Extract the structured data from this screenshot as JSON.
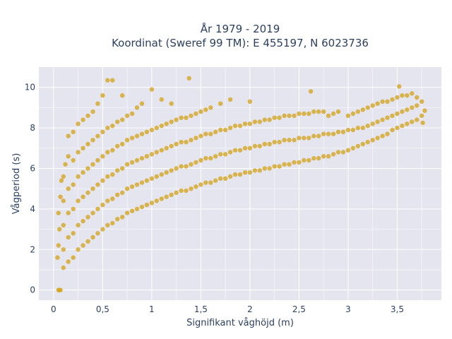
{
  "chart_data": {
    "type": "scatter",
    "title_line1": "År 1979 - 2019",
    "title_line2": "Koordinat (Sweref 99 TM): E 455197, N 6023736",
    "xlabel": "Signifikant våghöjd (m)",
    "ylabel": "Vågperiod (s)",
    "xlim": [
      -0.15,
      3.95
    ],
    "ylim": [
      -0.5,
      11.0
    ],
    "x_ticks": [
      {
        "value": 0,
        "label": "0"
      },
      {
        "value": 0.5,
        "label": "0,5"
      },
      {
        "value": 1,
        "label": "1"
      },
      {
        "value": 1.5,
        "label": "1,5"
      },
      {
        "value": 2,
        "label": "2"
      },
      {
        "value": 2.5,
        "label": "2,5"
      },
      {
        "value": 3,
        "label": "3"
      },
      {
        "value": 3.5,
        "label": "3,5"
      }
    ],
    "y_ticks": [
      {
        "value": 0,
        "label": "0"
      },
      {
        "value": 2,
        "label": "2"
      },
      {
        "value": 4,
        "label": "4"
      },
      {
        "value": 6,
        "label": "6"
      },
      {
        "value": 8,
        "label": "8"
      },
      {
        "value": 10,
        "label": "10"
      }
    ],
    "grid": true,
    "legend": "none",
    "marker_color": "#d4a520",
    "background_color": "#e5e5ef",
    "series": [
      {
        "points": [
          [
            0.05,
            0.0
          ],
          [
            0.06,
            0.0
          ],
          [
            0.07,
            0.0
          ],
          [
            0.04,
            1.6
          ],
          [
            0.05,
            2.2
          ],
          [
            0.06,
            3.0
          ],
          [
            0.05,
            3.8
          ],
          [
            0.07,
            4.6
          ],
          [
            0.08,
            5.4
          ],
          [
            0.1,
            1.1
          ],
          [
            0.1,
            2.0
          ],
          [
            0.1,
            3.2
          ],
          [
            0.1,
            4.4
          ],
          [
            0.1,
            5.6
          ],
          [
            0.12,
            6.2
          ],
          [
            0.15,
            1.4
          ],
          [
            0.15,
            2.6
          ],
          [
            0.15,
            3.8
          ],
          [
            0.15,
            5.0
          ],
          [
            0.15,
            6.6
          ],
          [
            0.15,
            7.6
          ],
          [
            0.2,
            1.6
          ],
          [
            0.2,
            2.8
          ],
          [
            0.2,
            4.0
          ],
          [
            0.2,
            5.2
          ],
          [
            0.2,
            6.4
          ],
          [
            0.2,
            7.8
          ],
          [
            0.25,
            2.0
          ],
          [
            0.25,
            3.2
          ],
          [
            0.25,
            4.4
          ],
          [
            0.25,
            5.6
          ],
          [
            0.25,
            6.8
          ],
          [
            0.25,
            8.2
          ],
          [
            0.3,
            2.2
          ],
          [
            0.3,
            3.4
          ],
          [
            0.3,
            4.6
          ],
          [
            0.3,
            5.8
          ],
          [
            0.3,
            7.0
          ],
          [
            0.3,
            8.4
          ],
          [
            0.35,
            2.4
          ],
          [
            0.35,
            3.6
          ],
          [
            0.35,
            4.8
          ],
          [
            0.35,
            6.0
          ],
          [
            0.35,
            7.2
          ],
          [
            0.35,
            8.6
          ],
          [
            0.4,
            2.6
          ],
          [
            0.4,
            3.8
          ],
          [
            0.4,
            5.0
          ],
          [
            0.4,
            6.2
          ],
          [
            0.4,
            7.4
          ],
          [
            0.4,
            8.8
          ],
          [
            0.45,
            2.8
          ],
          [
            0.45,
            4.0
          ],
          [
            0.45,
            5.2
          ],
          [
            0.45,
            6.4
          ],
          [
            0.45,
            7.6
          ],
          [
            0.45,
            9.2
          ],
          [
            0.5,
            3.0
          ],
          [
            0.5,
            4.2
          ],
          [
            0.5,
            5.4
          ],
          [
            0.5,
            6.6
          ],
          [
            0.5,
            7.8
          ],
          [
            0.5,
            9.6
          ],
          [
            0.55,
            3.2
          ],
          [
            0.55,
            4.4
          ],
          [
            0.55,
            5.6
          ],
          [
            0.55,
            6.8
          ],
          [
            0.55,
            8.0
          ],
          [
            0.55,
            10.35
          ],
          [
            0.6,
            3.3
          ],
          [
            0.6,
            4.5
          ],
          [
            0.6,
            5.7
          ],
          [
            0.6,
            6.9
          ],
          [
            0.6,
            8.1
          ],
          [
            0.6,
            10.35
          ],
          [
            0.65,
            3.5
          ],
          [
            0.65,
            4.7
          ],
          [
            0.65,
            5.9
          ],
          [
            0.65,
            7.1
          ],
          [
            0.65,
            8.3
          ],
          [
            0.7,
            3.6
          ],
          [
            0.7,
            4.8
          ],
          [
            0.7,
            6.0
          ],
          [
            0.7,
            7.2
          ],
          [
            0.7,
            8.4
          ],
          [
            0.7,
            9.6
          ],
          [
            0.75,
            3.8
          ],
          [
            0.75,
            5.0
          ],
          [
            0.75,
            6.2
          ],
          [
            0.75,
            7.4
          ],
          [
            0.75,
            8.6
          ],
          [
            0.8,
            3.9
          ],
          [
            0.8,
            5.1
          ],
          [
            0.8,
            6.3
          ],
          [
            0.8,
            7.5
          ],
          [
            0.8,
            8.7
          ],
          [
            0.85,
            4.0
          ],
          [
            0.85,
            5.2
          ],
          [
            0.85,
            6.4
          ],
          [
            0.85,
            7.6
          ],
          [
            0.85,
            9.0
          ],
          [
            0.9,
            4.1
          ],
          [
            0.9,
            5.3
          ],
          [
            0.9,
            6.5
          ],
          [
            0.9,
            7.7
          ],
          [
            0.9,
            9.2
          ],
          [
            0.95,
            4.2
          ],
          [
            0.95,
            5.4
          ],
          [
            0.95,
            6.6
          ],
          [
            0.95,
            7.8
          ],
          [
            1.0,
            4.3
          ],
          [
            1.0,
            5.5
          ],
          [
            1.0,
            6.7
          ],
          [
            1.0,
            7.9
          ],
          [
            1.0,
            9.9
          ],
          [
            1.05,
            4.4
          ],
          [
            1.05,
            5.6
          ],
          [
            1.05,
            6.8
          ],
          [
            1.05,
            8.0
          ],
          [
            1.1,
            4.5
          ],
          [
            1.1,
            5.7
          ],
          [
            1.1,
            6.9
          ],
          [
            1.1,
            8.1
          ],
          [
            1.1,
            9.4
          ],
          [
            1.15,
            4.6
          ],
          [
            1.15,
            5.8
          ],
          [
            1.15,
            7.0
          ],
          [
            1.15,
            8.2
          ],
          [
            1.2,
            4.7
          ],
          [
            1.2,
            5.9
          ],
          [
            1.2,
            7.1
          ],
          [
            1.2,
            8.3
          ],
          [
            1.2,
            9.2
          ],
          [
            1.25,
            4.8
          ],
          [
            1.25,
            6.0
          ],
          [
            1.25,
            7.2
          ],
          [
            1.25,
            8.4
          ],
          [
            1.3,
            4.9
          ],
          [
            1.3,
            6.1
          ],
          [
            1.3,
            7.3
          ],
          [
            1.3,
            8.5
          ],
          [
            1.35,
            4.9
          ],
          [
            1.35,
            6.1
          ],
          [
            1.35,
            7.3
          ],
          [
            1.35,
            8.5
          ],
          [
            1.38,
            10.45
          ],
          [
            1.4,
            5.0
          ],
          [
            1.4,
            6.2
          ],
          [
            1.4,
            7.4
          ],
          [
            1.4,
            8.6
          ],
          [
            1.45,
            5.1
          ],
          [
            1.45,
            6.3
          ],
          [
            1.45,
            7.5
          ],
          [
            1.45,
            8.7
          ],
          [
            1.5,
            5.2
          ],
          [
            1.5,
            6.4
          ],
          [
            1.5,
            7.6
          ],
          [
            1.5,
            8.8
          ],
          [
            1.55,
            5.3
          ],
          [
            1.55,
            6.5
          ],
          [
            1.55,
            7.7
          ],
          [
            1.55,
            8.9
          ],
          [
            1.6,
            5.3
          ],
          [
            1.6,
            6.5
          ],
          [
            1.6,
            7.7
          ],
          [
            1.6,
            9.0
          ],
          [
            1.65,
            5.4
          ],
          [
            1.65,
            6.6
          ],
          [
            1.65,
            7.8
          ],
          [
            1.7,
            5.5
          ],
          [
            1.7,
            6.7
          ],
          [
            1.7,
            7.9
          ],
          [
            1.7,
            9.2
          ],
          [
            1.75,
            5.5
          ],
          [
            1.75,
            6.7
          ],
          [
            1.75,
            7.9
          ],
          [
            1.8,
            5.6
          ],
          [
            1.8,
            6.8
          ],
          [
            1.8,
            8.0
          ],
          [
            1.8,
            9.4
          ],
          [
            1.85,
            5.7
          ],
          [
            1.85,
            6.9
          ],
          [
            1.85,
            8.1
          ],
          [
            1.9,
            5.7
          ],
          [
            1.9,
            6.9
          ],
          [
            1.9,
            8.1
          ],
          [
            1.95,
            5.8
          ],
          [
            1.95,
            7.0
          ],
          [
            1.95,
            8.2
          ],
          [
            2.0,
            5.8
          ],
          [
            2.0,
            7.0
          ],
          [
            2.0,
            8.2
          ],
          [
            2.0,
            9.3
          ],
          [
            2.05,
            5.9
          ],
          [
            2.05,
            7.1
          ],
          [
            2.05,
            8.3
          ],
          [
            2.1,
            5.9
          ],
          [
            2.1,
            7.1
          ],
          [
            2.1,
            8.3
          ],
          [
            2.15,
            6.0
          ],
          [
            2.15,
            7.2
          ],
          [
            2.15,
            8.4
          ],
          [
            2.2,
            6.0
          ],
          [
            2.2,
            7.2
          ],
          [
            2.2,
            8.4
          ],
          [
            2.25,
            6.1
          ],
          [
            2.25,
            7.3
          ],
          [
            2.25,
            8.5
          ],
          [
            2.3,
            6.1
          ],
          [
            2.3,
            7.3
          ],
          [
            2.3,
            8.5
          ],
          [
            2.35,
            6.2
          ],
          [
            2.35,
            7.4
          ],
          [
            2.35,
            8.6
          ],
          [
            2.4,
            6.2
          ],
          [
            2.4,
            7.4
          ],
          [
            2.4,
            8.6
          ],
          [
            2.45,
            6.3
          ],
          [
            2.45,
            7.4
          ],
          [
            2.45,
            8.6
          ],
          [
            2.5,
            6.3
          ],
          [
            2.5,
            7.5
          ],
          [
            2.5,
            8.7
          ],
          [
            2.55,
            6.4
          ],
          [
            2.55,
            7.5
          ],
          [
            2.55,
            8.7
          ],
          [
            2.6,
            6.4
          ],
          [
            2.6,
            7.5
          ],
          [
            2.6,
            8.7
          ],
          [
            2.62,
            9.8
          ],
          [
            2.65,
            6.5
          ],
          [
            2.65,
            7.6
          ],
          [
            2.65,
            8.8
          ],
          [
            2.7,
            6.5
          ],
          [
            2.7,
            7.6
          ],
          [
            2.7,
            8.8
          ],
          [
            2.75,
            6.6
          ],
          [
            2.75,
            7.7
          ],
          [
            2.75,
            8.8
          ],
          [
            2.8,
            6.6
          ],
          [
            2.8,
            7.7
          ],
          [
            2.8,
            8.6
          ],
          [
            2.85,
            6.7
          ],
          [
            2.85,
            7.7
          ],
          [
            2.85,
            8.7
          ],
          [
            2.9,
            6.8
          ],
          [
            2.9,
            7.8
          ],
          [
            2.9,
            8.8
          ],
          [
            2.95,
            6.8
          ],
          [
            2.95,
            7.8
          ],
          [
            3.0,
            6.9
          ],
          [
            3.0,
            7.9
          ],
          [
            3.0,
            8.6
          ],
          [
            3.05,
            7.0
          ],
          [
            3.05,
            7.9
          ],
          [
            3.05,
            8.7
          ],
          [
            3.1,
            7.1
          ],
          [
            3.1,
            8.0
          ],
          [
            3.1,
            8.8
          ],
          [
            3.15,
            7.2
          ],
          [
            3.15,
            8.0
          ],
          [
            3.15,
            8.9
          ],
          [
            3.2,
            7.3
          ],
          [
            3.2,
            8.1
          ],
          [
            3.2,
            9.0
          ],
          [
            3.25,
            7.4
          ],
          [
            3.25,
            8.2
          ],
          [
            3.25,
            9.1
          ],
          [
            3.3,
            7.5
          ],
          [
            3.3,
            8.3
          ],
          [
            3.3,
            9.2
          ],
          [
            3.35,
            7.6
          ],
          [
            3.35,
            8.4
          ],
          [
            3.35,
            9.3
          ],
          [
            3.4,
            7.7
          ],
          [
            3.4,
            8.5
          ],
          [
            3.4,
            9.3
          ],
          [
            3.45,
            7.9
          ],
          [
            3.45,
            8.6
          ],
          [
            3.45,
            9.4
          ],
          [
            3.5,
            8.0
          ],
          [
            3.5,
            8.7
          ],
          [
            3.5,
            9.5
          ],
          [
            3.52,
            10.05
          ],
          [
            3.55,
            8.1
          ],
          [
            3.55,
            8.8
          ],
          [
            3.55,
            9.6
          ],
          [
            3.6,
            8.2
          ],
          [
            3.6,
            8.9
          ],
          [
            3.6,
            9.6
          ],
          [
            3.65,
            8.3
          ],
          [
            3.65,
            9.0
          ],
          [
            3.65,
            9.7
          ],
          [
            3.7,
            8.4
          ],
          [
            3.7,
            9.1
          ],
          [
            3.7,
            9.5
          ],
          [
            3.75,
            8.6
          ],
          [
            3.75,
            9.3
          ],
          [
            3.78,
            8.85
          ],
          [
            3.76,
            8.25
          ]
        ]
      }
    ]
  }
}
